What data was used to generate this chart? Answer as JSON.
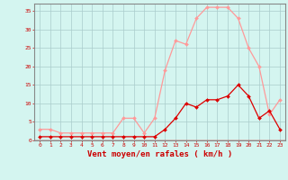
{
  "x": [
    0,
    1,
    2,
    3,
    4,
    5,
    6,
    7,
    8,
    9,
    10,
    11,
    12,
    13,
    14,
    15,
    16,
    17,
    18,
    19,
    20,
    21,
    22,
    23
  ],
  "rafales": [
    3,
    3,
    2,
    2,
    2,
    2,
    2,
    2,
    6,
    6,
    2,
    6,
    19,
    27,
    26,
    33,
    36,
    36,
    36,
    33,
    25,
    20,
    7,
    11
  ],
  "moyenne": [
    1,
    1,
    1,
    1,
    1,
    1,
    1,
    1,
    1,
    1,
    1,
    1,
    3,
    6,
    10,
    9,
    11,
    11,
    12,
    15,
    12,
    6,
    8,
    3
  ],
  "line_color_rafales": "#ff9999",
  "line_color_moyenne": "#dd0000",
  "bg_color": "#d4f5f0",
  "grid_color": "#aacccc",
  "xlabel": "Vent moyen/en rafales ( km/h )",
  "ylim": [
    0,
    37
  ],
  "xlim": [
    -0.5,
    23.5
  ],
  "yticks": [
    0,
    5,
    10,
    15,
    20,
    25,
    30,
    35
  ],
  "xticks": [
    0,
    1,
    2,
    3,
    4,
    5,
    6,
    7,
    8,
    9,
    10,
    11,
    12,
    13,
    14,
    15,
    16,
    17,
    18,
    19,
    20,
    21,
    22,
    23
  ],
  "xlabel_color": "#cc0000",
  "tick_color": "#cc0000",
  "axis_color": "#cc0000",
  "spine_color": "#888888"
}
